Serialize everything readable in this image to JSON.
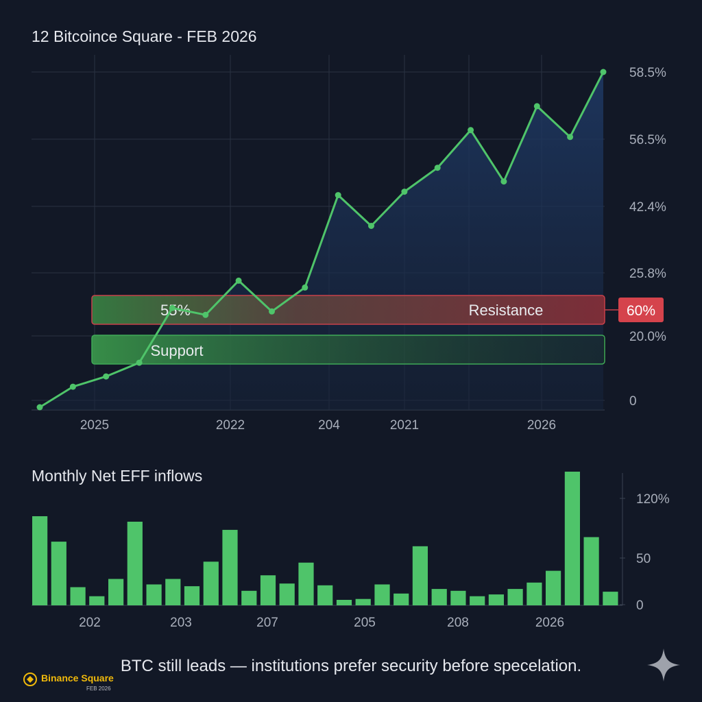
{
  "caption": "BTC still leads — institutions prefer security before specelation.",
  "logo": {
    "name": "Binance Square",
    "date": "FEB 2026"
  },
  "chart_data": [
    {
      "type": "line",
      "title": "12 Bitcoince Square - FEB 2026",
      "x_tick_labels": [
        "2025",
        "2022",
        "204",
        "2021",
        "2026"
      ],
      "y_tick_labels": [
        "58.5%",
        "56.5%",
        "42.4%",
        "25.8%",
        "20.0%",
        "0"
      ],
      "y_tick_values": [
        58.5,
        56.5,
        42.4,
        25.8,
        20.0,
        0
      ],
      "y_scale": "non-linear (labels as printed)",
      "y_values": [
        0,
        3,
        4.5,
        6.5,
        14.5,
        13.5,
        18.5,
        14,
        17.5,
        31,
        26.5,
        31.5,
        35,
        40.5,
        33,
        44,
        39.5,
        49
      ],
      "fill": "area",
      "bands": [
        {
          "label": "55%",
          "value_label": "",
          "kind": "support-top"
        },
        {
          "label": "Resistance",
          "value_label": "60%",
          "kind": "resistance"
        },
        {
          "label": "Support",
          "value_label": "",
          "kind": "support"
        }
      ],
      "grid": true,
      "colors": {
        "line": "#4fc46a",
        "area": "#1d3356",
        "resistance": "#c8414a",
        "support": "#3c9a4e"
      }
    },
    {
      "type": "bar",
      "title": "Monthly Net EFF inflows",
      "x_tick_labels": [
        "202",
        "203",
        "207",
        "205",
        "208",
        "2026"
      ],
      "y_tick_labels": [
        "120%",
        "50",
        "0"
      ],
      "y_tick_values": [
        120,
        50,
        0
      ],
      "values": [
        98,
        70,
        20,
        10,
        29,
        92,
        23,
        29,
        21,
        48,
        83,
        16,
        33,
        24,
        47,
        22,
        6,
        7,
        23,
        13,
        65,
        18,
        16,
        10,
        12,
        18,
        25,
        38,
        147,
        75,
        15
      ],
      "grid": true,
      "colors": {
        "bar": "#4fc46a"
      }
    }
  ]
}
